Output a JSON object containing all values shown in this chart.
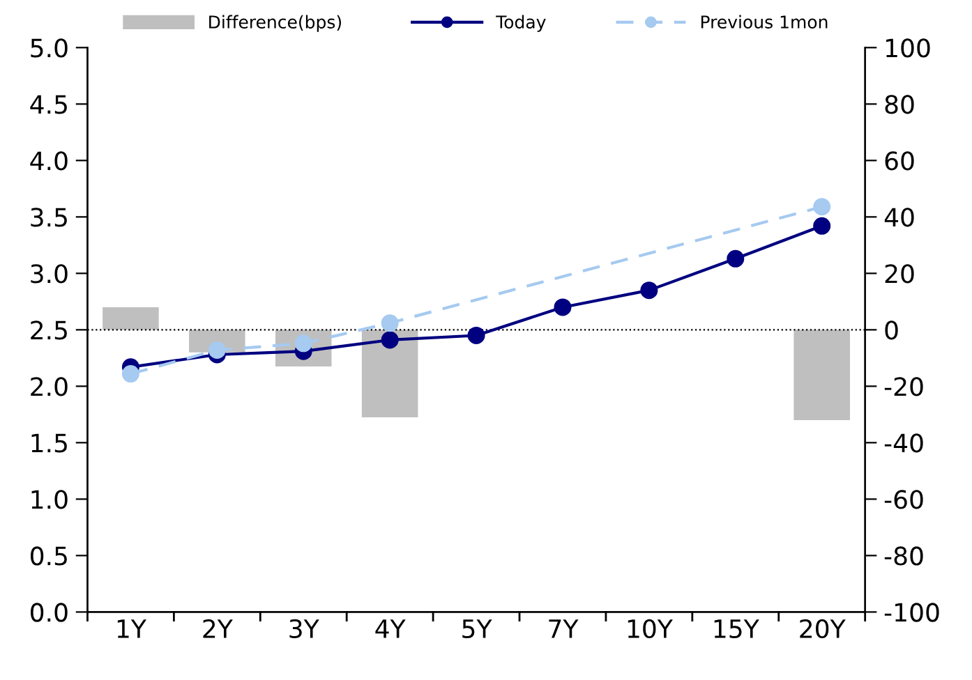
{
  "chart_data": {
    "type": "line",
    "categories": [
      "1Y",
      "2Y",
      "3Y",
      "4Y",
      "5Y",
      "7Y",
      "10Y",
      "15Y",
      "20Y"
    ],
    "series": [
      {
        "name": "Difference(bps)",
        "type": "bar",
        "axis": "y2",
        "color": "#bfbfbf",
        "values": [
          8,
          -8,
          -13,
          -31,
          null,
          null,
          null,
          null,
          -32
        ]
      },
      {
        "name": "Today",
        "color": "#000080",
        "marker": "circle",
        "line_style": "solid",
        "values": [
          2.17,
          2.28,
          2.31,
          2.41,
          2.45,
          2.7,
          2.85,
          3.13,
          3.42
        ]
      },
      {
        "name": "Previous 1mon",
        "color": "#a6caf0",
        "marker": "circle",
        "line_style": "dashed",
        "values": [
          2.11,
          2.32,
          2.38,
          2.56,
          null,
          null,
          null,
          null,
          3.59
        ]
      }
    ],
    "ylim": [
      0,
      5
    ],
    "yticks": [
      {
        "value": 0,
        "label": "0.0"
      },
      {
        "value": 0.5,
        "label": "0.5"
      },
      {
        "value": 1,
        "label": "1.0"
      },
      {
        "value": 1.5,
        "label": "1.5"
      },
      {
        "value": 2,
        "label": "2.0"
      },
      {
        "value": 2.5,
        "label": "2.5"
      },
      {
        "value": 3,
        "label": "3.0"
      },
      {
        "value": 3.5,
        "label": "3.5"
      },
      {
        "value": 4,
        "label": "4.0"
      },
      {
        "value": 4.5,
        "label": "4.5"
      },
      {
        "value": 5,
        "label": "5.0"
      }
    ],
    "y2lim": [
      -100,
      100
    ],
    "y2ticks": [
      -100,
      -80,
      -60,
      -40,
      -20,
      0,
      20,
      40,
      60,
      80,
      100
    ],
    "ref_lines": [
      {
        "axis": "y2",
        "value": 0,
        "color": "#000000",
        "line_style": "dotted"
      }
    ],
    "grid": false,
    "legend": "top"
  }
}
